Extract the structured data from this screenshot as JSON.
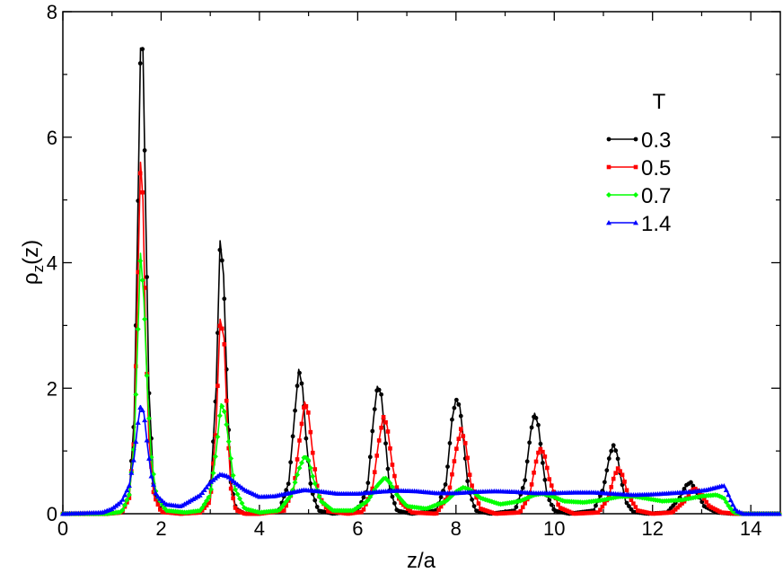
{
  "chart_data": {
    "type": "line",
    "xlabel": "z/a",
    "ylabel_main": "ρ",
    "ylabel_sub": "z",
    "ylabel_tail": "(z)",
    "xlim": [
      0,
      14.6
    ],
    "ylim": [
      0,
      8
    ],
    "x_ticks": [
      0,
      2,
      4,
      6,
      8,
      10,
      12,
      14
    ],
    "x_tick_labels": [
      "0",
      "2",
      "4",
      "6",
      "8",
      "10",
      "12",
      "14"
    ],
    "y_ticks": [
      0,
      2,
      4,
      6,
      8
    ],
    "y_tick_labels": [
      "0",
      "2",
      "4",
      "6",
      "8"
    ],
    "grid": false,
    "legend_title": "T",
    "legend_position": "top-right",
    "series": [
      {
        "name": "0.3",
        "color": "#000000",
        "marker": "circle",
        "x": [
          0.0,
          0.9,
          1.2,
          1.35,
          1.45,
          1.52,
          1.58,
          1.63,
          1.68,
          1.75,
          1.85,
          2.0,
          2.4,
          2.8,
          3.0,
          3.12,
          3.2,
          3.27,
          3.35,
          3.42,
          3.52,
          3.7,
          4.0,
          4.4,
          4.6,
          4.72,
          4.8,
          4.88,
          4.95,
          5.05,
          5.2,
          5.5,
          6.0,
          6.2,
          6.32,
          6.4,
          6.48,
          6.55,
          6.65,
          6.8,
          7.1,
          7.6,
          7.8,
          7.92,
          8.0,
          8.08,
          8.15,
          8.25,
          8.4,
          8.7,
          9.2,
          9.4,
          9.52,
          9.6,
          9.68,
          9.75,
          9.85,
          10.0,
          10.3,
          10.8,
          11.0,
          11.12,
          11.2,
          11.28,
          11.35,
          11.45,
          11.6,
          11.9,
          12.3,
          12.55,
          12.68,
          12.78,
          12.9,
          13.05,
          13.3,
          13.6,
          14.0,
          14.6
        ],
        "y": [
          0.0,
          0.0,
          0.02,
          0.3,
          1.5,
          4.5,
          7.42,
          7.4,
          5.1,
          2.0,
          0.4,
          0.03,
          0.0,
          0.02,
          0.3,
          2.0,
          4.35,
          3.8,
          1.8,
          0.5,
          0.08,
          0.0,
          0.0,
          0.05,
          0.5,
          1.6,
          2.3,
          2.0,
          1.2,
          0.4,
          0.05,
          0.0,
          0.05,
          0.4,
          1.5,
          2.03,
          1.9,
          1.3,
          0.4,
          0.05,
          0.0,
          0.05,
          0.5,
          1.5,
          1.83,
          1.7,
          1.2,
          0.4,
          0.05,
          0.0,
          0.05,
          0.5,
          1.3,
          1.6,
          1.4,
          0.9,
          0.3,
          0.05,
          0.0,
          0.05,
          0.4,
          0.9,
          1.1,
          0.95,
          0.6,
          0.2,
          0.03,
          0.0,
          0.02,
          0.25,
          0.45,
          0.5,
          0.35,
          0.12,
          0.02,
          0.0,
          0.0,
          0.0
        ]
      },
      {
        "name": "0.5",
        "color": "#ff0000",
        "marker": "square",
        "x": [
          0.0,
          0.9,
          1.2,
          1.35,
          1.45,
          1.52,
          1.58,
          1.63,
          1.68,
          1.75,
          1.85,
          2.0,
          2.4,
          2.8,
          3.0,
          3.12,
          3.2,
          3.28,
          3.35,
          3.42,
          3.52,
          3.7,
          4.0,
          4.5,
          4.7,
          4.82,
          4.92,
          5.0,
          5.08,
          5.2,
          5.4,
          5.8,
          6.1,
          6.3,
          6.42,
          6.52,
          6.6,
          6.7,
          6.85,
          7.1,
          7.6,
          7.85,
          8.0,
          8.1,
          8.2,
          8.3,
          8.5,
          8.8,
          9.3,
          9.5,
          9.62,
          9.7,
          9.8,
          9.9,
          10.1,
          10.4,
          10.9,
          11.1,
          11.22,
          11.3,
          11.4,
          11.5,
          11.7,
          12.0,
          12.4,
          12.65,
          12.8,
          12.88,
          13.0,
          13.15,
          13.4,
          13.7,
          14.0,
          14.6
        ],
        "y": [
          0.0,
          0.0,
          0.02,
          0.25,
          1.2,
          3.5,
          5.6,
          5.0,
          3.0,
          1.2,
          0.3,
          0.03,
          0.0,
          0.02,
          0.2,
          1.4,
          3.1,
          2.8,
          1.4,
          0.4,
          0.06,
          0.0,
          0.0,
          0.05,
          0.4,
          1.2,
          1.78,
          1.6,
          1.0,
          0.3,
          0.04,
          0.0,
          0.03,
          0.4,
          1.1,
          1.55,
          1.4,
          0.8,
          0.2,
          0.02,
          0.0,
          0.3,
          1.0,
          1.35,
          1.1,
          0.5,
          0.08,
          0.0,
          0.02,
          0.3,
          0.8,
          1.05,
          0.95,
          0.55,
          0.1,
          0.0,
          0.02,
          0.25,
          0.6,
          0.73,
          0.6,
          0.3,
          0.05,
          0.0,
          0.02,
          0.2,
          0.38,
          0.4,
          0.3,
          0.12,
          0.02,
          0.0,
          0.0,
          0.0
        ]
      },
      {
        "name": "0.7",
        "color": "#00ff00",
        "marker": "diamond",
        "x": [
          0.0,
          0.9,
          1.2,
          1.35,
          1.45,
          1.52,
          1.58,
          1.65,
          1.72,
          1.8,
          1.9,
          2.1,
          2.5,
          2.8,
          3.0,
          3.12,
          3.22,
          3.3,
          3.4,
          3.5,
          3.7,
          4.0,
          4.4,
          4.65,
          4.8,
          4.92,
          5.0,
          5.1,
          5.25,
          5.5,
          5.9,
          6.2,
          6.4,
          6.55,
          6.65,
          6.8,
          7.0,
          7.4,
          7.8,
          8.0,
          8.15,
          8.3,
          8.5,
          8.9,
          9.3,
          9.6,
          9.75,
          9.95,
          10.2,
          10.6,
          11.0,
          11.3,
          11.6,
          11.9,
          12.2,
          12.6,
          13.0,
          13.3,
          13.45,
          13.55,
          13.65,
          13.8,
          14.6
        ],
        "y": [
          0.0,
          0.0,
          0.03,
          0.3,
          1.1,
          2.7,
          4.15,
          3.4,
          2.0,
          0.9,
          0.3,
          0.05,
          0.02,
          0.05,
          0.3,
          1.0,
          1.75,
          1.6,
          1.0,
          0.4,
          0.08,
          0.02,
          0.05,
          0.3,
          0.7,
          0.92,
          0.85,
          0.55,
          0.2,
          0.05,
          0.05,
          0.2,
          0.45,
          0.58,
          0.5,
          0.3,
          0.12,
          0.08,
          0.2,
          0.35,
          0.42,
          0.38,
          0.25,
          0.15,
          0.2,
          0.3,
          0.32,
          0.28,
          0.2,
          0.18,
          0.22,
          0.27,
          0.28,
          0.24,
          0.2,
          0.22,
          0.28,
          0.3,
          0.25,
          0.12,
          0.02,
          0.0,
          0.0
        ]
      },
      {
        "name": "1.4",
        "color": "#0000ff",
        "marker": "triangle",
        "x": [
          0.0,
          0.8,
          1.0,
          1.2,
          1.35,
          1.45,
          1.52,
          1.58,
          1.65,
          1.72,
          1.8,
          1.9,
          2.1,
          2.4,
          2.8,
          3.0,
          3.2,
          3.35,
          3.5,
          3.7,
          4.0,
          4.3,
          4.6,
          4.9,
          5.2,
          5.6,
          6.0,
          6.4,
          6.8,
          7.2,
          7.6,
          8.0,
          8.4,
          8.8,
          9.2,
          9.6,
          10.0,
          10.4,
          10.8,
          11.2,
          11.6,
          12.0,
          12.4,
          12.8,
          13.1,
          13.3,
          13.45,
          13.52,
          13.6,
          13.7,
          13.85,
          14.6
        ],
        "y": [
          0.0,
          0.02,
          0.08,
          0.2,
          0.45,
          0.9,
          1.4,
          1.72,
          1.6,
          1.1,
          0.6,
          0.3,
          0.15,
          0.12,
          0.3,
          0.5,
          0.63,
          0.6,
          0.5,
          0.38,
          0.27,
          0.28,
          0.33,
          0.38,
          0.36,
          0.32,
          0.32,
          0.35,
          0.37,
          0.36,
          0.33,
          0.33,
          0.35,
          0.36,
          0.35,
          0.33,
          0.33,
          0.34,
          0.34,
          0.32,
          0.3,
          0.31,
          0.33,
          0.35,
          0.38,
          0.42,
          0.45,
          0.35,
          0.2,
          0.05,
          0.0,
          0.0
        ]
      }
    ]
  }
}
